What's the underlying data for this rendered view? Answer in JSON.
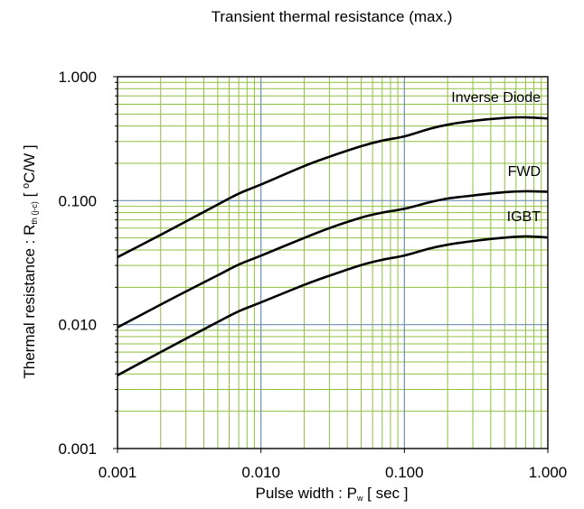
{
  "chart_data": {
    "type": "line",
    "title": "Transient thermal resistance (max.)",
    "xlabel": {
      "prefix": "Pulse width : P",
      "sub": "w",
      "suffix": " [ sec ]"
    },
    "ylabel": {
      "prefix": "Thermal resistance : R",
      "sub": "th (j-c)",
      "mid": " [ ",
      "sup": "o",
      "suffix": "C/W ]"
    },
    "x_scale": "log",
    "y_scale": "log",
    "xlim": [
      0.001,
      1.0
    ],
    "ylim": [
      0.001,
      1.0
    ],
    "x_ticks": [
      {
        "value": 0.001,
        "label": "0.001"
      },
      {
        "value": 0.01,
        "label": "0.010"
      },
      {
        "value": 0.1,
        "label": "0.100"
      },
      {
        "value": 1.0,
        "label": "1.000"
      }
    ],
    "y_ticks": [
      {
        "value": 0.001,
        "label": "0.001"
      },
      {
        "value": 0.01,
        "label": "0.010"
      },
      {
        "value": 0.1,
        "label": "0.100"
      },
      {
        "value": 1.0,
        "label": "1.000"
      }
    ],
    "grid": true,
    "colors": {
      "major_grid": "#6f8fb3",
      "minor_grid": "#8fbf3f",
      "series": "#000000"
    },
    "series": [
      {
        "name": "Inverse Diode",
        "x": [
          0.001,
          0.002,
          0.003,
          0.005,
          0.007,
          0.01,
          0.02,
          0.03,
          0.05,
          0.07,
          0.1,
          0.15,
          0.2,
          0.3,
          0.5,
          0.7,
          1.0
        ],
        "y": [
          0.035,
          0.053,
          0.068,
          0.093,
          0.114,
          0.135,
          0.19,
          0.226,
          0.275,
          0.305,
          0.33,
          0.38,
          0.41,
          0.44,
          0.465,
          0.47,
          0.46
        ]
      },
      {
        "name": "FWD",
        "x": [
          0.001,
          0.002,
          0.003,
          0.005,
          0.007,
          0.01,
          0.02,
          0.03,
          0.05,
          0.07,
          0.1,
          0.15,
          0.2,
          0.3,
          0.5,
          0.7,
          1.0
        ],
        "y": [
          0.0095,
          0.0145,
          0.0185,
          0.025,
          0.0305,
          0.036,
          0.05,
          0.06,
          0.073,
          0.08,
          0.086,
          0.097,
          0.104,
          0.11,
          0.117,
          0.119,
          0.118
        ]
      },
      {
        "name": "IGBT",
        "x": [
          0.001,
          0.002,
          0.003,
          0.005,
          0.007,
          0.01,
          0.02,
          0.03,
          0.05,
          0.07,
          0.1,
          0.15,
          0.2,
          0.3,
          0.5,
          0.7,
          1.0
        ],
        "y": [
          0.0039,
          0.006,
          0.0077,
          0.0105,
          0.0128,
          0.0151,
          0.0209,
          0.0248,
          0.0302,
          0.0333,
          0.0361,
          0.0411,
          0.0441,
          0.0472,
          0.0503,
          0.0515,
          0.0505
        ]
      }
    ]
  }
}
